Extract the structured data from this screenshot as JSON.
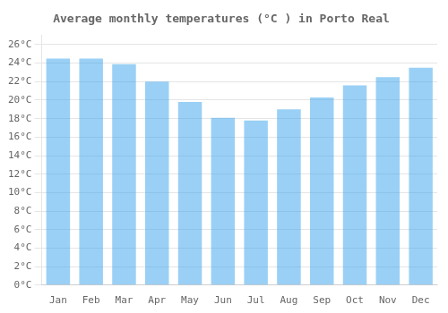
{
  "chart_data": {
    "type": "bar",
    "title": "Average monthly temperatures (°C ) in Porto Real",
    "categories": [
      "Jan",
      "Feb",
      "Mar",
      "Apr",
      "May",
      "Jun",
      "Jul",
      "Aug",
      "Sep",
      "Oct",
      "Nov",
      "Dec"
    ],
    "values": [
      24.5,
      24.5,
      23.9,
      22.0,
      19.8,
      18.1,
      17.8,
      19.0,
      20.3,
      21.6,
      22.5,
      23.5
    ],
    "ylim": [
      0,
      27
    ],
    "yticks": [
      {
        "value": 0,
        "label": "0°C"
      },
      {
        "value": 2,
        "label": "2°C"
      },
      {
        "value": 4,
        "label": "4°C"
      },
      {
        "value": 6,
        "label": "6°C"
      },
      {
        "value": 8,
        "label": "8°C"
      },
      {
        "value": 10,
        "label": "10°C"
      },
      {
        "value": 12,
        "label": "12°C"
      },
      {
        "value": 14,
        "label": "14°C"
      },
      {
        "value": 16,
        "label": "16°C"
      },
      {
        "value": 18,
        "label": "18°C"
      },
      {
        "value": 20,
        "label": "20°C"
      },
      {
        "value": 22,
        "label": "22°C"
      },
      {
        "value": 24,
        "label": "24°C"
      },
      {
        "value": 26,
        "label": "26°C"
      }
    ],
    "grid": true
  }
}
